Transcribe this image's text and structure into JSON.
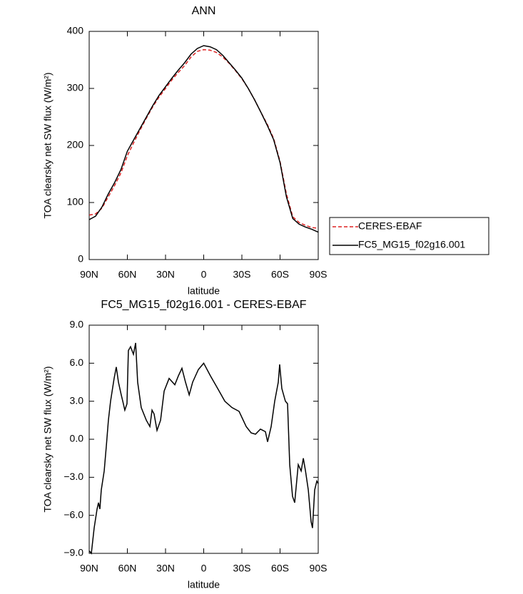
{
  "chart_data": [
    {
      "type": "line",
      "title": "ANN",
      "xlabel": "latitude",
      "ylabel": "TOA clearsky net SW flux (W/m²)",
      "x": [
        90,
        85,
        80,
        75,
        70,
        65,
        60,
        55,
        50,
        45,
        40,
        35,
        30,
        25,
        20,
        15,
        10,
        5,
        0,
        -5,
        -10,
        -15,
        -20,
        -25,
        -30,
        -35,
        -40,
        -45,
        -50,
        -55,
        -60,
        -65,
        -70,
        -75,
        -80,
        -85,
        -90
      ],
      "series": [
        {
          "name": "CERES-EBAF",
          "color": "#dd2222",
          "line_style": "dashed",
          "values": [
            78,
            80,
            90,
            110,
            130,
            152,
            182,
            205,
            227,
            248,
            268,
            285,
            300,
            315,
            328,
            340,
            355,
            365,
            368,
            367,
            363,
            355,
            344,
            331,
            317,
            300,
            280,
            258,
            237,
            212,
            172,
            115,
            75,
            65,
            60,
            56,
            55
          ]
        },
        {
          "name": "FC5_MG15_f02g16.001",
          "color": "#000000",
          "line_style": "solid",
          "values": [
            70,
            76,
            92,
            115,
            135,
            158,
            190,
            210,
            230,
            250,
            270,
            288,
            303,
            318,
            332,
            345,
            360,
            370,
            375,
            373,
            368,
            358,
            345,
            332,
            318,
            300,
            280,
            258,
            235,
            210,
            170,
            110,
            72,
            62,
            57,
            53,
            48
          ]
        }
      ],
      "xlim": [
        90,
        -90
      ],
      "xticks": [
        {
          "value": 90,
          "label": "90N"
        },
        {
          "value": 60,
          "label": "60N"
        },
        {
          "value": 30,
          "label": "30N"
        },
        0,
        {
          "value": -30,
          "label": "30S"
        },
        {
          "value": -60,
          "label": "60S"
        },
        {
          "value": -90,
          "label": "90S"
        }
      ],
      "ylim": [
        0,
        400
      ],
      "yticks": [
        0,
        100,
        200,
        300,
        400
      ],
      "legend": "right"
    },
    {
      "type": "line",
      "title": "FC5_MG15_f02g16.001 - CERES-EBAF",
      "xlabel": "latitude",
      "ylabel": "TOA clearsky net SW flux (W/m²)",
      "x": [
        90,
        88.3,
        86.1,
        83.8,
        82.7,
        81.6,
        80.5,
        78.2,
        76.5,
        74.9,
        73.2,
        70.4,
        68.7,
        67.0,
        64.8,
        63.6,
        62.0,
        60.3,
        59.2,
        57.5,
        55.2,
        53.5,
        51.9,
        49.1,
        45.1,
        42.3,
        40.6,
        39.0,
        36.7,
        33.9,
        31.1,
        27.2,
        22.7,
        19.9,
        17.1,
        14.3,
        11.4,
        8.7,
        4.2,
        0,
        -5.3,
        -11.0,
        -16.6,
        -22.2,
        -27.8,
        -33.4,
        -37.3,
        -40.7,
        -44.6,
        -48.5,
        -50.2,
        -53.0,
        -55.8,
        -58.6,
        -59.7,
        -61.4,
        -64.2,
        -65.9,
        -67.6,
        -69.8,
        -71.5,
        -74.3,
        -76.6,
        -78.3,
        -80.0,
        -82.2,
        -84.4,
        -85.5,
        -87.2,
        -88.9,
        -90
      ],
      "series": [
        {
          "color": "#000000",
          "line_style": "solid",
          "values": [
            -8.8,
            -9.0,
            -7.0,
            -5.5,
            -5.0,
            -5.5,
            -4.0,
            -2.5,
            -0.5,
            1.5,
            3.0,
            4.8,
            5.7,
            4.5,
            3.5,
            3.0,
            2.3,
            2.8,
            7.0,
            7.3,
            6.7,
            7.6,
            4.5,
            2.5,
            1.5,
            1.0,
            2.3,
            2.0,
            0.7,
            1.5,
            3.8,
            4.8,
            4.3,
            5.0,
            5.6,
            4.5,
            3.5,
            4.5,
            5.5,
            6.0,
            5.0,
            4.0,
            3.0,
            2.5,
            2.2,
            1.0,
            0.5,
            0.4,
            0.8,
            0.6,
            -0.2,
            1.0,
            3.0,
            4.5,
            5.9,
            4.0,
            3.0,
            2.8,
            -2.0,
            -4.5,
            -5.0,
            -2.0,
            -2.5,
            -1.5,
            -2.5,
            -4.0,
            -6.5,
            -7.0,
            -4.0,
            -3.3,
            -3.5
          ]
        }
      ],
      "xlim": [
        90,
        -90
      ],
      "xticks": [
        {
          "value": 90,
          "label": "90N"
        },
        {
          "value": 60,
          "label": "60N"
        },
        {
          "value": 30,
          "label": "30N"
        },
        0,
        {
          "value": -30,
          "label": "30S"
        },
        {
          "value": -60,
          "label": "60S"
        },
        {
          "value": -90,
          "label": "90S"
        }
      ],
      "ylim": [
        -9,
        9
      ],
      "yticks": [
        {
          "value": -9,
          "label": "−9.0"
        },
        {
          "value": -6,
          "label": "−6.0"
        },
        {
          "value": -3,
          "label": "−3.0"
        },
        {
          "value": 0,
          "label": "0.0"
        },
        {
          "value": 3,
          "label": "3.0"
        },
        {
          "value": 6,
          "label": "6.0"
        },
        {
          "value": 9,
          "label": "9.0"
        }
      ]
    }
  ]
}
